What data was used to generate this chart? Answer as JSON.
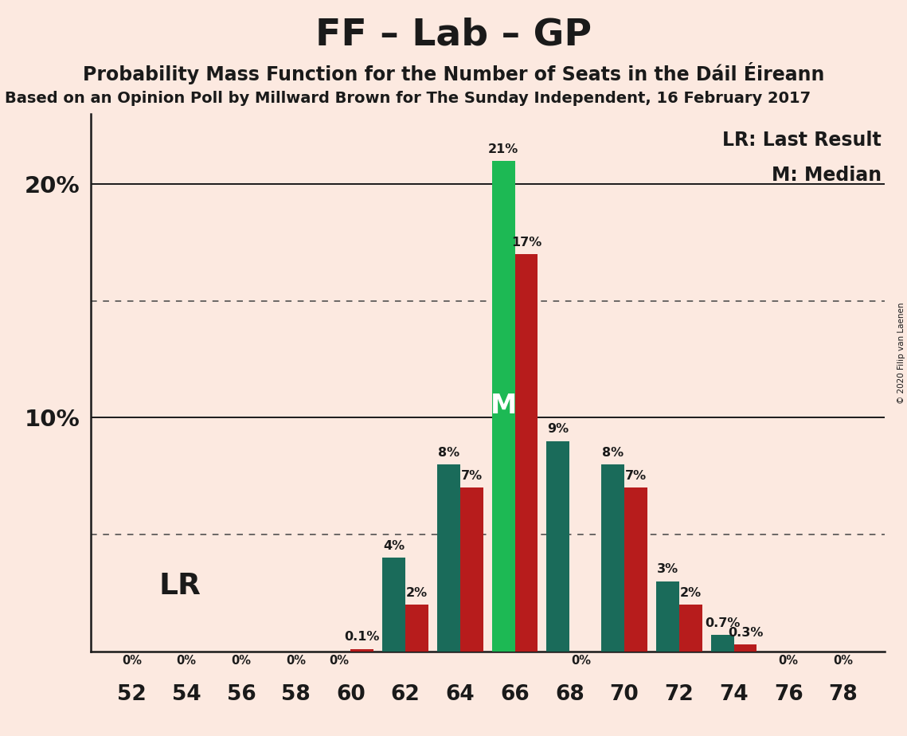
{
  "title": "FF – Lab – GP",
  "subtitle": "Probability Mass Function for the Number of Seats in the Dáil Éireann",
  "source_line": "Based on an Opinion Poll by Millward Brown for The Sunday Independent, 16 February 2017",
  "copyright": "© 2020 Filip van Laenen",
  "legend_lr": "LR: Last Result",
  "legend_m": "M: Median",
  "lr_label": "LR",
  "background_color": "#fce9e0",
  "bar_color_pmf_teal": "#1a6b5a",
  "bar_color_pmf_bright": "#1db954",
  "bar_color_lr": "#b71c1c",
  "median_label_color": "#ffffff",
  "seats": [
    52,
    54,
    56,
    58,
    60,
    62,
    64,
    66,
    68,
    70,
    72,
    74,
    76,
    78
  ],
  "pmf_values": [
    0.0,
    0.0,
    0.0,
    0.0,
    0.0,
    4.0,
    8.0,
    21.0,
    9.0,
    8.0,
    3.0,
    0.7,
    0.0,
    0.0
  ],
  "lr_values": [
    0.0,
    0.0,
    0.0,
    0.0,
    0.1,
    2.0,
    7.0,
    17.0,
    0.0,
    7.0,
    2.0,
    0.3,
    0.0,
    0.0
  ],
  "pmf_labels": [
    "0%",
    "0%",
    "0%",
    "0%",
    "0%",
    "4%",
    "8%",
    "21%",
    "9%",
    "8%",
    "3%",
    "0.7%",
    "0%",
    "0%"
  ],
  "lr_labels": [
    "0%",
    "0%",
    "0%",
    "0%",
    "0.1%",
    "2%",
    "7%",
    "17%",
    "0%",
    "7%",
    "2%",
    "0.3%",
    "0%",
    "0%"
  ],
  "median_seat_idx": 7,
  "ylim": [
    0,
    23
  ],
  "dotted_lines": [
    5.0,
    15.0
  ],
  "solid_lines": [
    10.0,
    20.0
  ],
  "title_fontsize": 34,
  "subtitle_fontsize": 17,
  "source_fontsize": 14,
  "label_fontsize": 11.5,
  "zero_label_fontsize": 10.5,
  "tick_fontsize": 19,
  "ytick_fontsize": 21,
  "legend_fontsize": 17,
  "lr_text_fontsize": 27,
  "bar_width": 0.42
}
